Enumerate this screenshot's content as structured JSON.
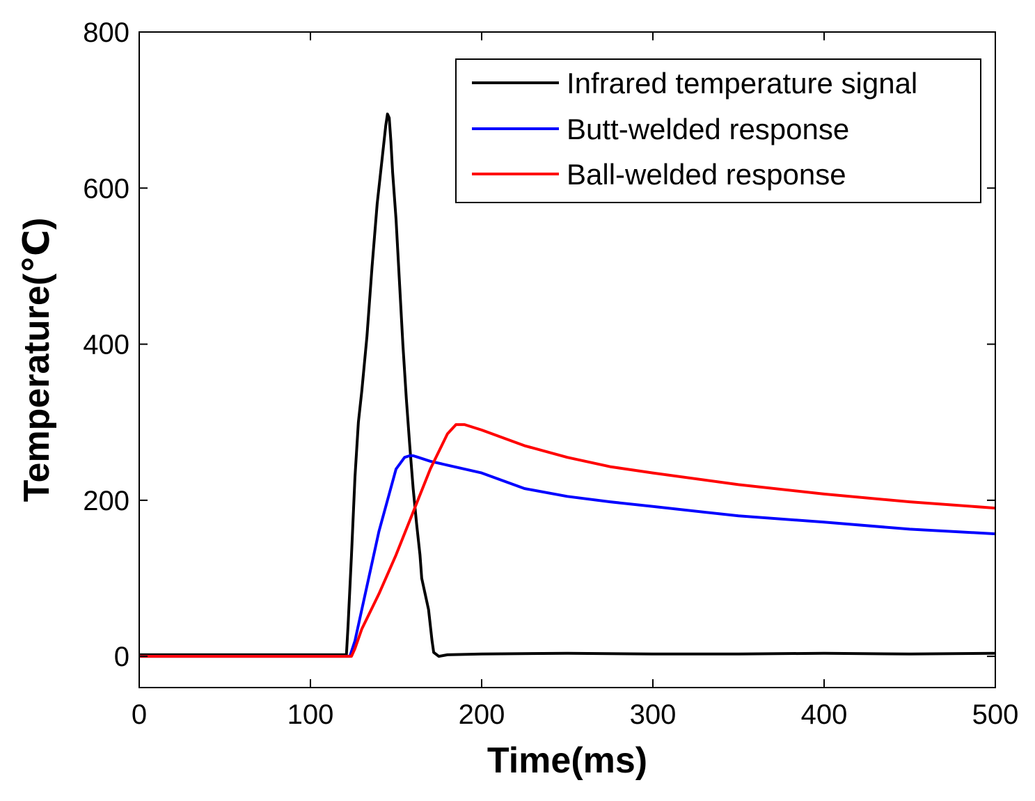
{
  "chart_data": {
    "type": "line",
    "title": "",
    "xlabel": "Time(ms)",
    "ylabel": "Temperature(℃)",
    "xlim": [
      0,
      500
    ],
    "ylim": [
      -40,
      800
    ],
    "xticks": [
      0,
      100,
      200,
      300,
      400,
      500
    ],
    "yticks": [
      0,
      200,
      400,
      600,
      800
    ],
    "xtick_labels": [
      "0",
      "100",
      "200",
      "300",
      "400",
      "500"
    ],
    "ytick_labels": [
      "0",
      "200",
      "400",
      "600",
      "800"
    ],
    "grid": false,
    "legend_position": "top-right",
    "series": [
      {
        "name": "Infrared temperature signal",
        "color": "#000000",
        "x": [
          0,
          121,
          122,
          124,
          126,
          128,
          130,
          133,
          136,
          139,
          142,
          144,
          145,
          146,
          147,
          148,
          150,
          152,
          154,
          156,
          158,
          160,
          162,
          164,
          165,
          167,
          169,
          170,
          171,
          172,
          175,
          180,
          200,
          250,
          300,
          350,
          400,
          450,
          500
        ],
        "y": [
          2,
          2,
          40,
          130,
          230,
          300,
          340,
          410,
          500,
          580,
          640,
          680,
          695,
          690,
          660,
          620,
          560,
          480,
          400,
          330,
          270,
          215,
          170,
          130,
          100,
          80,
          60,
          40,
          20,
          5,
          0,
          2,
          3,
          4,
          3,
          3,
          4,
          3,
          4
        ]
      },
      {
        "name": "Butt-welded response",
        "color": "#0000ff",
        "x": [
          0,
          123,
          126,
          130,
          135,
          140,
          145,
          150,
          155,
          158,
          160,
          163,
          170,
          180,
          200,
          225,
          250,
          275,
          300,
          350,
          400,
          450,
          500
        ],
        "y": [
          0,
          0,
          20,
          60,
          110,
          160,
          200,
          240,
          255,
          257,
          257,
          255,
          250,
          245,
          235,
          215,
          205,
          198,
          192,
          180,
          172,
          163,
          157
        ]
      },
      {
        "name": "Ball-welded response",
        "color": "#ff0000",
        "x": [
          0,
          124,
          126,
          130,
          140,
          150,
          160,
          170,
          180,
          185,
          190,
          200,
          225,
          250,
          275,
          300,
          350,
          400,
          450,
          500
        ],
        "y": [
          0,
          0,
          10,
          35,
          80,
          130,
          185,
          240,
          285,
          297,
          297,
          290,
          270,
          255,
          243,
          235,
          220,
          208,
          198,
          190
        ]
      }
    ]
  }
}
